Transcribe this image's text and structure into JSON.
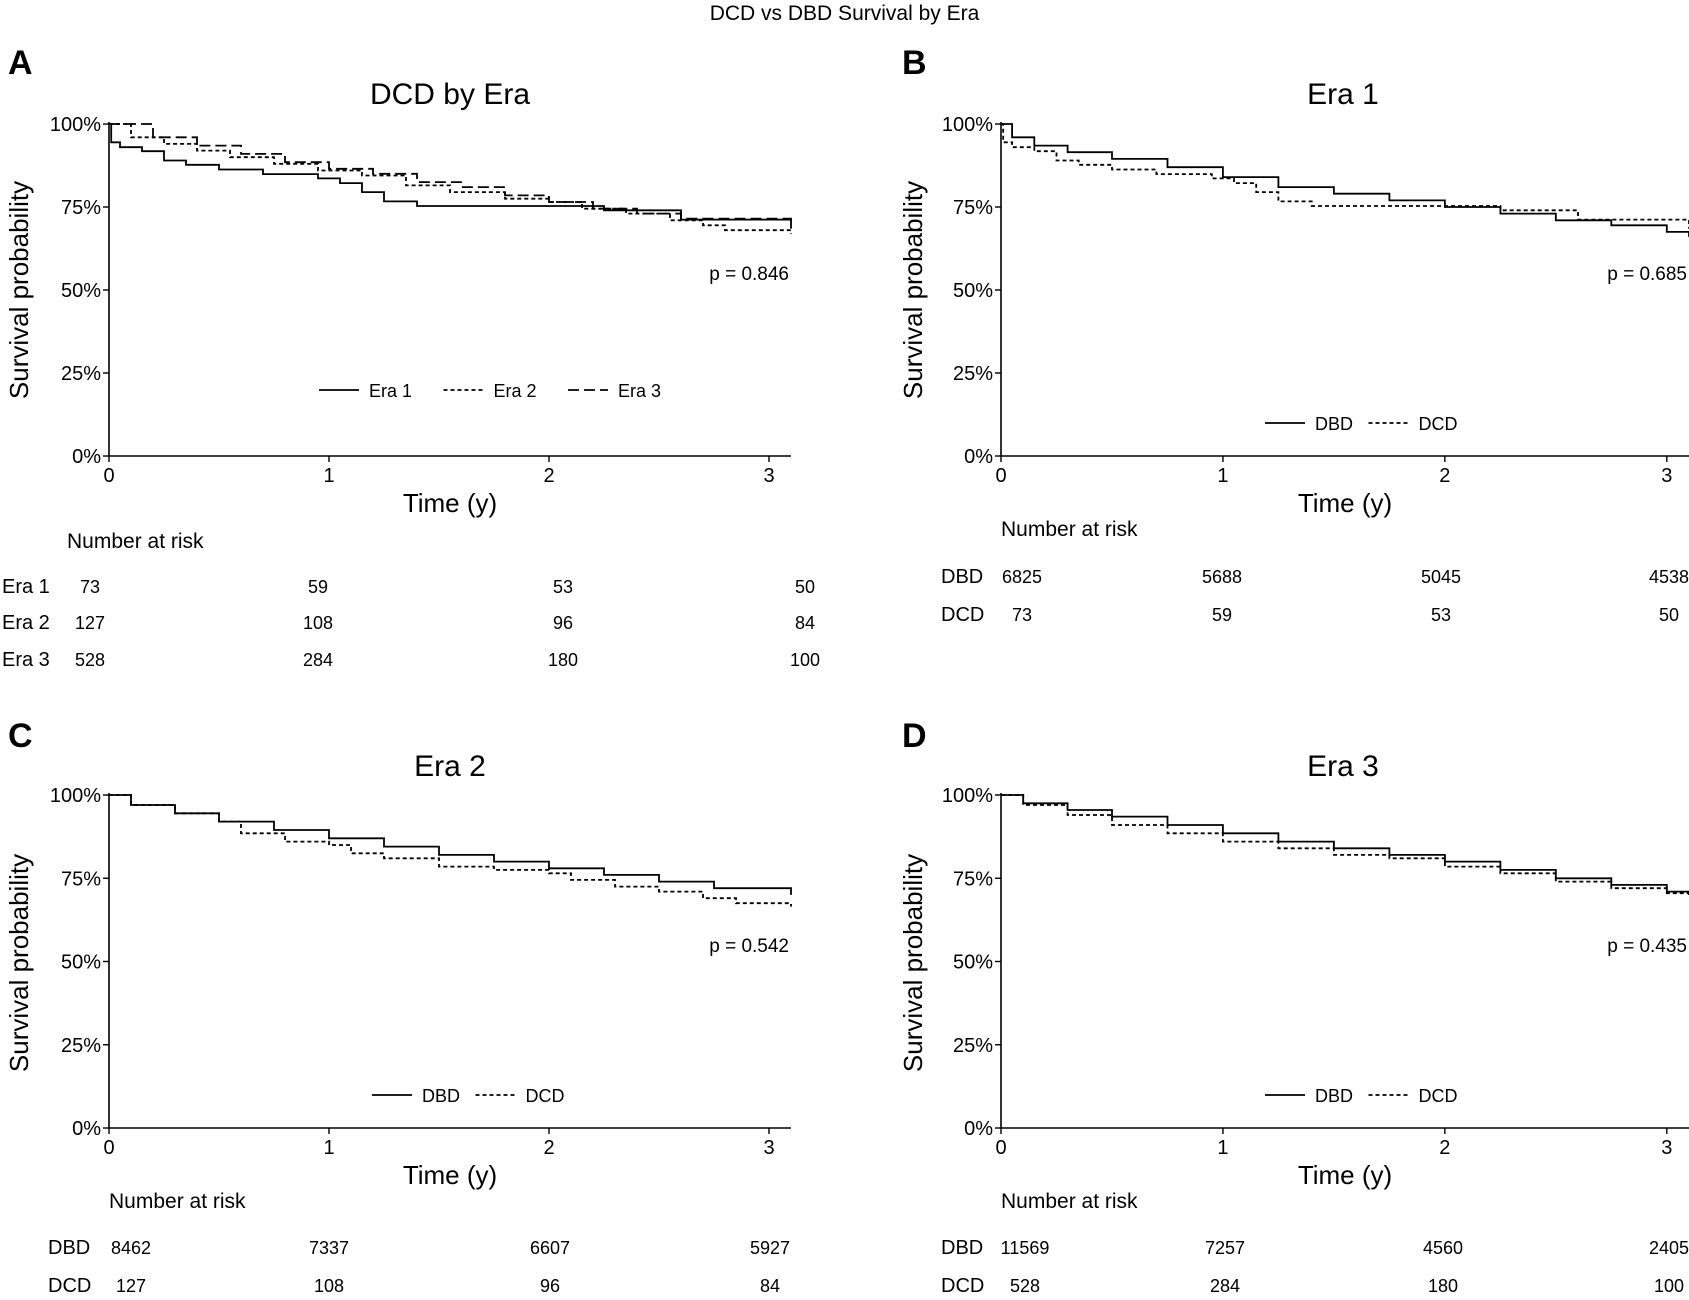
{
  "figure": {
    "title": "DCD vs DBD Survival by Era"
  },
  "panels": [
    {
      "letter": "A",
      "title": "DCD by Era",
      "ylabel": "Survival probability",
      "xlabel": "Time (y)",
      "pvalue": "p = 0.846"
    },
    {
      "letter": "B",
      "title": "Era 1",
      "ylabel": "Survival probability",
      "xlabel": "Time (y)",
      "pvalue": "p = 0.685"
    },
    {
      "letter": "C",
      "title": "Era 2",
      "ylabel": "Survival probability",
      "xlabel": "Time (y)",
      "pvalue": "p = 0.542"
    },
    {
      "letter": "D",
      "title": "Era 3",
      "ylabel": "Survival probability",
      "xlabel": "Time (y)",
      "pvalue": "p = 0.435"
    }
  ],
  "chart_data": [
    {
      "type": "line",
      "title": "DCD by Era",
      "xlabel": "Time (y)",
      "ylabel": "Survival probability",
      "xlim": [
        0,
        3.1
      ],
      "ylim": [
        0,
        1
      ],
      "xticks": [
        "0",
        "1",
        "2",
        "3"
      ],
      "yticks": [
        "0%",
        "25%",
        "50%",
        "75%",
        "100%"
      ],
      "legend": "bottom-center",
      "annotation": "p = 0.846",
      "series": [
        {
          "name": "Era 1",
          "style": "solid",
          "x": [
            0,
            0.01,
            0.05,
            0.15,
            0.25,
            0.35,
            0.5,
            0.7,
            0.95,
            1.05,
            1.15,
            1.25,
            1.4,
            2.25,
            2.6,
            3.1
          ],
          "y": [
            1.0,
            0.945,
            0.93,
            0.918,
            0.89,
            0.877,
            0.863,
            0.849,
            0.836,
            0.822,
            0.795,
            0.767,
            0.753,
            0.74,
            0.712,
            0.685
          ]
        },
        {
          "name": "Era 2",
          "style": "dotted",
          "x": [
            0,
            0.1,
            0.25,
            0.4,
            0.55,
            0.75,
            0.95,
            1.15,
            1.35,
            1.55,
            1.8,
            2.0,
            2.15,
            2.35,
            2.55,
            2.7,
            2.8,
            3.1
          ],
          "y": [
            1.0,
            0.96,
            0.94,
            0.92,
            0.9,
            0.88,
            0.86,
            0.845,
            0.815,
            0.795,
            0.775,
            0.765,
            0.745,
            0.73,
            0.71,
            0.695,
            0.68,
            0.67
          ]
        },
        {
          "name": "Era 3",
          "style": "dashed",
          "x": [
            0,
            0.2,
            0.4,
            0.6,
            0.8,
            1.0,
            1.2,
            1.4,
            1.6,
            1.8,
            2.0,
            2.2,
            2.4,
            2.6,
            3.1
          ],
          "y": [
            1.0,
            0.96,
            0.935,
            0.91,
            0.885,
            0.865,
            0.85,
            0.825,
            0.81,
            0.785,
            0.765,
            0.745,
            0.73,
            0.715,
            0.7
          ]
        }
      ],
      "risk_table": {
        "title": "Number at risk",
        "times": [
          0,
          1,
          2,
          3
        ],
        "rows": [
          {
            "label": "Era 1",
            "values": [
              "73",
              "59",
              "53",
              "50"
            ]
          },
          {
            "label": "Era 2",
            "values": [
              "127",
              "108",
              "96",
              "84"
            ]
          },
          {
            "label": "Era 3",
            "values": [
              "528",
              "284",
              "180",
              "100"
            ]
          }
        ]
      }
    },
    {
      "type": "line",
      "title": "Era 1",
      "xlabel": "Time (y)",
      "ylabel": "Survival probability",
      "xlim": [
        0,
        3.1
      ],
      "ylim": [
        0,
        1
      ],
      "xticks": [
        "0",
        "1",
        "2",
        "3"
      ],
      "yticks": [
        "0%",
        "25%",
        "50%",
        "75%",
        "100%"
      ],
      "legend": "bottom-center",
      "annotation": "p = 0.685",
      "series": [
        {
          "name": "DBD",
          "style": "solid",
          "x": [
            0,
            0.05,
            0.15,
            0.3,
            0.5,
            0.75,
            1.0,
            1.25,
            1.5,
            1.75,
            2.0,
            2.25,
            2.5,
            2.75,
            3.0,
            3.1
          ],
          "y": [
            1.0,
            0.96,
            0.935,
            0.915,
            0.895,
            0.87,
            0.84,
            0.81,
            0.79,
            0.77,
            0.75,
            0.73,
            0.71,
            0.695,
            0.675,
            0.66
          ]
        },
        {
          "name": "DCD",
          "style": "dotted",
          "x": [
            0,
            0.01,
            0.05,
            0.15,
            0.25,
            0.35,
            0.5,
            0.7,
            0.95,
            1.05,
            1.15,
            1.25,
            1.4,
            2.25,
            2.6,
            3.1
          ],
          "y": [
            1.0,
            0.945,
            0.93,
            0.918,
            0.89,
            0.877,
            0.863,
            0.849,
            0.836,
            0.822,
            0.795,
            0.767,
            0.753,
            0.74,
            0.712,
            0.685
          ]
        }
      ],
      "risk_table": {
        "title": "Number at risk",
        "times": [
          0,
          1,
          2,
          3
        ],
        "rows": [
          {
            "label": "DBD",
            "values": [
              "6825",
              "5688",
              "5045",
              "4538"
            ]
          },
          {
            "label": "DCD",
            "values": [
              "73",
              "59",
              "53",
              "50"
            ]
          }
        ]
      }
    },
    {
      "type": "line",
      "title": "Era 2",
      "xlabel": "Time (y)",
      "ylabel": "Survival probability",
      "xlim": [
        0,
        3.1
      ],
      "ylim": [
        0,
        1
      ],
      "xticks": [
        "0",
        "1",
        "2",
        "3"
      ],
      "yticks": [
        "0%",
        "25%",
        "50%",
        "75%",
        "100%"
      ],
      "legend": "bottom-center",
      "annotation": "p = 0.542",
      "series": [
        {
          "name": "DBD",
          "style": "solid",
          "x": [
            0,
            0.1,
            0.3,
            0.5,
            0.75,
            1.0,
            1.25,
            1.5,
            1.75,
            2.0,
            2.25,
            2.5,
            2.75,
            3.1
          ],
          "y": [
            1.0,
            0.97,
            0.945,
            0.92,
            0.895,
            0.87,
            0.845,
            0.82,
            0.8,
            0.78,
            0.76,
            0.74,
            0.72,
            0.7
          ]
        },
        {
          "name": "DCD",
          "style": "dotted",
          "x": [
            0,
            0.1,
            0.3,
            0.5,
            0.6,
            0.8,
            1.0,
            1.1,
            1.25,
            1.5,
            1.75,
            2.0,
            2.1,
            2.3,
            2.5,
            2.7,
            2.85,
            3.1
          ],
          "y": [
            1.0,
            0.97,
            0.945,
            0.92,
            0.885,
            0.86,
            0.85,
            0.825,
            0.81,
            0.785,
            0.775,
            0.765,
            0.745,
            0.725,
            0.71,
            0.69,
            0.675,
            0.665
          ]
        }
      ],
      "risk_table": {
        "title": "Number at risk",
        "times": [
          0,
          1,
          2,
          3
        ],
        "rows": [
          {
            "label": "DBD",
            "values": [
              "8462",
              "7337",
              "6607",
              "5927"
            ]
          },
          {
            "label": "DCD",
            "values": [
              "127",
              "108",
              "96",
              "84"
            ]
          }
        ]
      }
    },
    {
      "type": "line",
      "title": "Era 3",
      "xlabel": "Time (y)",
      "ylabel": "Survival probability",
      "xlim": [
        0,
        3.1
      ],
      "ylim": [
        0,
        1
      ],
      "xticks": [
        "0",
        "1",
        "2",
        "3"
      ],
      "yticks": [
        "0%",
        "25%",
        "50%",
        "75%",
        "100%"
      ],
      "legend": "bottom-center",
      "annotation": "p = 0.435",
      "series": [
        {
          "name": "DBD",
          "style": "solid",
          "x": [
            0,
            0.1,
            0.3,
            0.5,
            0.75,
            1.0,
            1.25,
            1.5,
            1.75,
            2.0,
            2.25,
            2.5,
            2.75,
            3.0,
            3.1
          ],
          "y": [
            1.0,
            0.975,
            0.955,
            0.935,
            0.91,
            0.885,
            0.86,
            0.84,
            0.82,
            0.8,
            0.775,
            0.75,
            0.73,
            0.71,
            0.7
          ]
        },
        {
          "name": "DCD",
          "style": "dotted",
          "x": [
            0,
            0.1,
            0.3,
            0.5,
            0.75,
            1.0,
            1.25,
            1.5,
            1.75,
            2.0,
            2.25,
            2.5,
            2.75,
            3.0,
            3.1
          ],
          "y": [
            1.0,
            0.97,
            0.94,
            0.91,
            0.885,
            0.86,
            0.84,
            0.82,
            0.81,
            0.785,
            0.765,
            0.74,
            0.72,
            0.705,
            0.7
          ]
        }
      ],
      "risk_table": {
        "title": "Number at risk",
        "times": [
          0,
          1,
          2,
          3
        ],
        "rows": [
          {
            "label": "DBD",
            "values": [
              "11569",
              "7257",
              "4560",
              "2405"
            ]
          },
          {
            "label": "DCD",
            "values": [
              "528",
              "284",
              "180",
              "100"
            ]
          }
        ]
      }
    }
  ]
}
